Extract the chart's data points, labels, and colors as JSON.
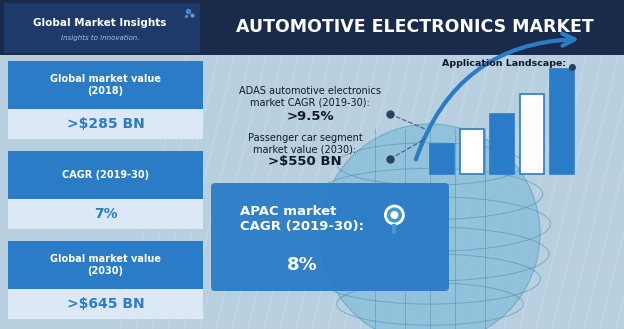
{
  "title": "AUTOMOTIVE ELECTRONICS MARKET",
  "logo_text": "Global Market Insights",
  "logo_subtext": "Insights to innovation.",
  "bg_color": "#b8cfe0",
  "header_bg": "#1a2a4a",
  "left_panel_bg": "#2a7cc7",
  "left_value_bg": "#dce8f5",
  "left_items": [
    {
      "label": "Global market value\n(2018)",
      "value": ">$285 BN"
    },
    {
      "label": "CAGR (2019-30)",
      "value": "7%"
    },
    {
      "label": "Global market value\n(2030)",
      "value": ">$645 BN"
    }
  ],
  "right_top_label": "Application Landscape:",
  "right_stats": [
    {
      "label": "ADAS automotive electronics\nmarket CAGR (2019-30):",
      "value": ">9.5%"
    },
    {
      "label": "Passenger car segment\nmarket value (2030):",
      "value": ">$550 BN"
    }
  ],
  "apac_label": "APAC market\nCAGR (2019-30):",
  "apac_value": "8%",
  "apac_bg": "#2a7cc7",
  "bar_cols": [
    "#2a7cc7",
    "white",
    "#2a7cc7",
    "white",
    "#2a7cc7"
  ],
  "bar_heights": [
    30,
    45,
    60,
    80,
    105
  ],
  "hatch_color": "#c8daec",
  "globe_color": "#7ab8d8",
  "arrow_color": "#2a7cc7",
  "dot_color": "#2a4060",
  "dashed_color": "#2a4060"
}
